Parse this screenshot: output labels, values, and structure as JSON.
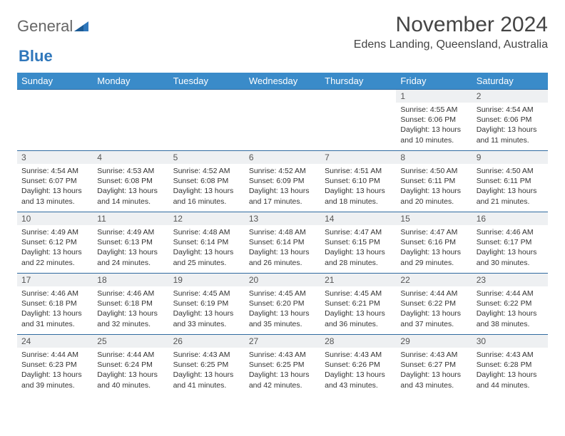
{
  "brand": {
    "general": "General",
    "blue": "Blue"
  },
  "title": {
    "month": "November 2024",
    "location": "Edens Landing, Queensland, Australia"
  },
  "colors": {
    "header_bg": "#3a8bc9",
    "header_text": "#ffffff",
    "cell_border": "#2f6aa0",
    "daynum_bg": "#eef0f2",
    "text": "#333333",
    "logo_blue": "#2f77bb"
  },
  "weekdays": [
    "Sunday",
    "Monday",
    "Tuesday",
    "Wednesday",
    "Thursday",
    "Friday",
    "Saturday"
  ],
  "layout": {
    "first_weekday_index": 5,
    "days_in_month": 30
  },
  "days": {
    "1": {
      "sunrise": "Sunrise: 4:55 AM",
      "sunset": "Sunset: 6:06 PM",
      "daylight": "Daylight: 13 hours and 10 minutes."
    },
    "2": {
      "sunrise": "Sunrise: 4:54 AM",
      "sunset": "Sunset: 6:06 PM",
      "daylight": "Daylight: 13 hours and 11 minutes."
    },
    "3": {
      "sunrise": "Sunrise: 4:54 AM",
      "sunset": "Sunset: 6:07 PM",
      "daylight": "Daylight: 13 hours and 13 minutes."
    },
    "4": {
      "sunrise": "Sunrise: 4:53 AM",
      "sunset": "Sunset: 6:08 PM",
      "daylight": "Daylight: 13 hours and 14 minutes."
    },
    "5": {
      "sunrise": "Sunrise: 4:52 AM",
      "sunset": "Sunset: 6:08 PM",
      "daylight": "Daylight: 13 hours and 16 minutes."
    },
    "6": {
      "sunrise": "Sunrise: 4:52 AM",
      "sunset": "Sunset: 6:09 PM",
      "daylight": "Daylight: 13 hours and 17 minutes."
    },
    "7": {
      "sunrise": "Sunrise: 4:51 AM",
      "sunset": "Sunset: 6:10 PM",
      "daylight": "Daylight: 13 hours and 18 minutes."
    },
    "8": {
      "sunrise": "Sunrise: 4:50 AM",
      "sunset": "Sunset: 6:11 PM",
      "daylight": "Daylight: 13 hours and 20 minutes."
    },
    "9": {
      "sunrise": "Sunrise: 4:50 AM",
      "sunset": "Sunset: 6:11 PM",
      "daylight": "Daylight: 13 hours and 21 minutes."
    },
    "10": {
      "sunrise": "Sunrise: 4:49 AM",
      "sunset": "Sunset: 6:12 PM",
      "daylight": "Daylight: 13 hours and 22 minutes."
    },
    "11": {
      "sunrise": "Sunrise: 4:49 AM",
      "sunset": "Sunset: 6:13 PM",
      "daylight": "Daylight: 13 hours and 24 minutes."
    },
    "12": {
      "sunrise": "Sunrise: 4:48 AM",
      "sunset": "Sunset: 6:14 PM",
      "daylight": "Daylight: 13 hours and 25 minutes."
    },
    "13": {
      "sunrise": "Sunrise: 4:48 AM",
      "sunset": "Sunset: 6:14 PM",
      "daylight": "Daylight: 13 hours and 26 minutes."
    },
    "14": {
      "sunrise": "Sunrise: 4:47 AM",
      "sunset": "Sunset: 6:15 PM",
      "daylight": "Daylight: 13 hours and 28 minutes."
    },
    "15": {
      "sunrise": "Sunrise: 4:47 AM",
      "sunset": "Sunset: 6:16 PM",
      "daylight": "Daylight: 13 hours and 29 minutes."
    },
    "16": {
      "sunrise": "Sunrise: 4:46 AM",
      "sunset": "Sunset: 6:17 PM",
      "daylight": "Daylight: 13 hours and 30 minutes."
    },
    "17": {
      "sunrise": "Sunrise: 4:46 AM",
      "sunset": "Sunset: 6:18 PM",
      "daylight": "Daylight: 13 hours and 31 minutes."
    },
    "18": {
      "sunrise": "Sunrise: 4:46 AM",
      "sunset": "Sunset: 6:18 PM",
      "daylight": "Daylight: 13 hours and 32 minutes."
    },
    "19": {
      "sunrise": "Sunrise: 4:45 AM",
      "sunset": "Sunset: 6:19 PM",
      "daylight": "Daylight: 13 hours and 33 minutes."
    },
    "20": {
      "sunrise": "Sunrise: 4:45 AM",
      "sunset": "Sunset: 6:20 PM",
      "daylight": "Daylight: 13 hours and 35 minutes."
    },
    "21": {
      "sunrise": "Sunrise: 4:45 AM",
      "sunset": "Sunset: 6:21 PM",
      "daylight": "Daylight: 13 hours and 36 minutes."
    },
    "22": {
      "sunrise": "Sunrise: 4:44 AM",
      "sunset": "Sunset: 6:22 PM",
      "daylight": "Daylight: 13 hours and 37 minutes."
    },
    "23": {
      "sunrise": "Sunrise: 4:44 AM",
      "sunset": "Sunset: 6:22 PM",
      "daylight": "Daylight: 13 hours and 38 minutes."
    },
    "24": {
      "sunrise": "Sunrise: 4:44 AM",
      "sunset": "Sunset: 6:23 PM",
      "daylight": "Daylight: 13 hours and 39 minutes."
    },
    "25": {
      "sunrise": "Sunrise: 4:44 AM",
      "sunset": "Sunset: 6:24 PM",
      "daylight": "Daylight: 13 hours and 40 minutes."
    },
    "26": {
      "sunrise": "Sunrise: 4:43 AM",
      "sunset": "Sunset: 6:25 PM",
      "daylight": "Daylight: 13 hours and 41 minutes."
    },
    "27": {
      "sunrise": "Sunrise: 4:43 AM",
      "sunset": "Sunset: 6:25 PM",
      "daylight": "Daylight: 13 hours and 42 minutes."
    },
    "28": {
      "sunrise": "Sunrise: 4:43 AM",
      "sunset": "Sunset: 6:26 PM",
      "daylight": "Daylight: 13 hours and 43 minutes."
    },
    "29": {
      "sunrise": "Sunrise: 4:43 AM",
      "sunset": "Sunset: 6:27 PM",
      "daylight": "Daylight: 13 hours and 43 minutes."
    },
    "30": {
      "sunrise": "Sunrise: 4:43 AM",
      "sunset": "Sunset: 6:28 PM",
      "daylight": "Daylight: 13 hours and 44 minutes."
    }
  }
}
